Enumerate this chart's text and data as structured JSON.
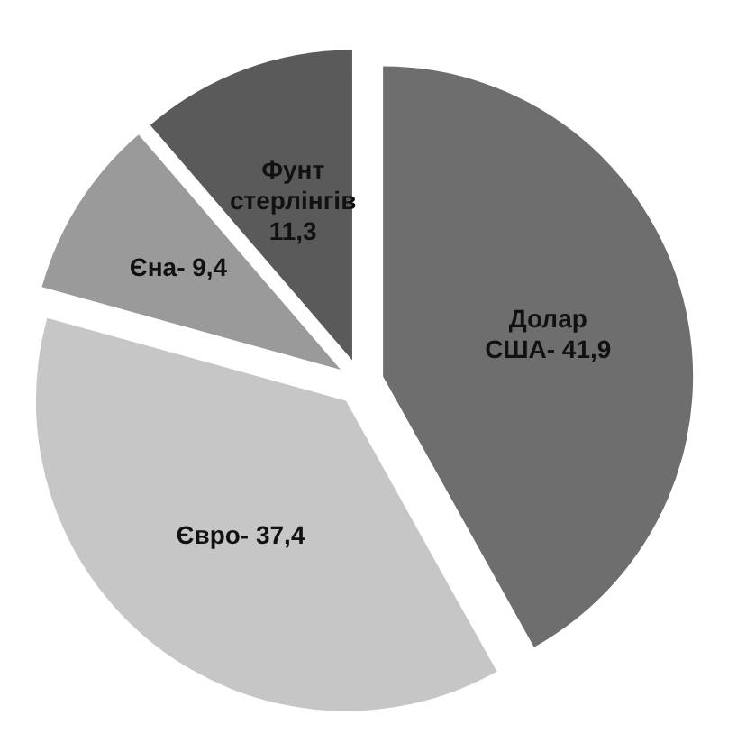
{
  "chart_data": {
    "type": "pie",
    "categories": [
      "Долар США-",
      "Євро-",
      "Єна-",
      "Фунт стерлінгів"
    ],
    "values": [
      41.9,
      37.4,
      9.4,
      11.3
    ],
    "colors": [
      "#6e6e6e",
      "#c6c6c6",
      "#9a9a9a",
      "#5a5a5a"
    ],
    "value_labels": [
      "41,9",
      "37,4",
      "9,4",
      "11,3"
    ]
  }
}
